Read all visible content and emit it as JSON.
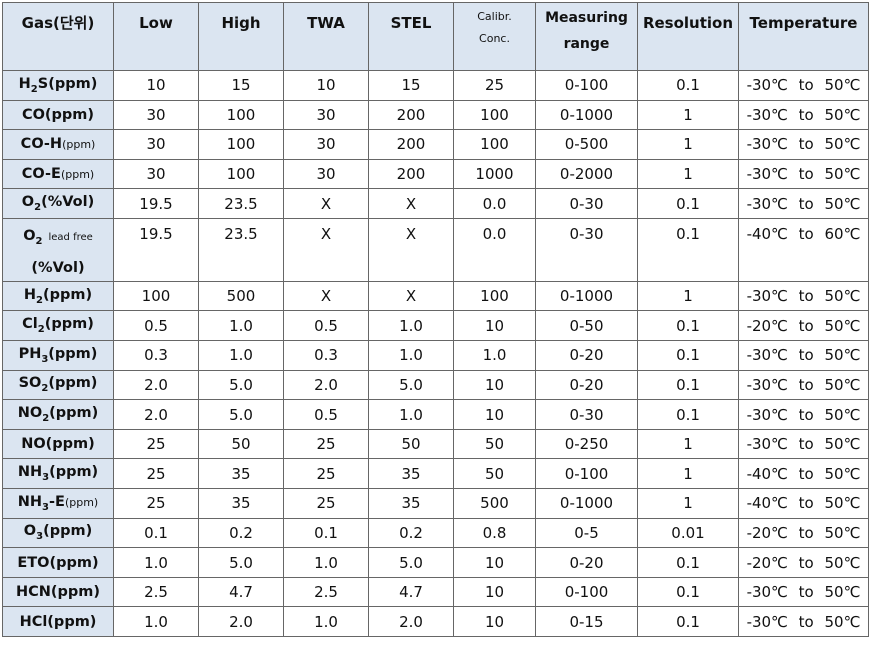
{
  "table": {
    "header": [
      [
        "Gas(단위)"
      ],
      [
        "Low"
      ],
      [
        "High"
      ],
      [
        "TWA"
      ],
      [
        "STEL"
      ],
      [
        "Calibr.",
        "Conc."
      ],
      [
        "Measuring",
        "range"
      ],
      [
        "Resolution"
      ],
      [
        "Temperature"
      ]
    ],
    "rows": [
      {
        "gas": [
          {
            "text": "H"
          },
          {
            "sub": "2"
          },
          {
            "text": "S(ppm)"
          }
        ],
        "cells": [
          "10",
          "15",
          "10",
          "15",
          "25",
          "0-100",
          "0.1",
          "-30℃ to 50℃"
        ]
      },
      {
        "gas": [
          {
            "text": "CO(ppm)"
          }
        ],
        "cells": [
          "30",
          "100",
          "30",
          "200",
          "100",
          "0-1000",
          "1",
          "-30℃ to 50℃"
        ]
      },
      {
        "gas": [
          {
            "text": "CO-H"
          },
          {
            "small": "(ppm)"
          }
        ],
        "cells": [
          "30",
          "100",
          "30",
          "200",
          "100",
          "0-500",
          "1",
          "-30℃ to 50℃"
        ]
      },
      {
        "gas": [
          {
            "text": "CO-E"
          },
          {
            "small": "(ppm)"
          }
        ],
        "cells": [
          "30",
          "100",
          "30",
          "200",
          "1000",
          "0-2000",
          "1",
          "-30℃ to 50℃"
        ]
      },
      {
        "gas": [
          {
            "text": "O"
          },
          {
            "sub": "2"
          },
          {
            "text": "(%Vol)"
          }
        ],
        "cells": [
          "19.5",
          "23.5",
          "X",
          "X",
          "0.0",
          "0-30",
          "0.1",
          "-30℃ to 50℃"
        ]
      },
      {
        "gas": [
          {
            "text": "O"
          },
          {
            "sub": "2"
          },
          {
            "small": "lead free"
          },
          {
            "line": "(%Vol)"
          }
        ],
        "cells": [
          "19.5",
          "23.5",
          "X",
          "X",
          "0.0",
          "0-30",
          "0.1",
          "-40℃ to 60℃"
        ]
      },
      {
        "gas": [
          {
            "text": "H"
          },
          {
            "sub": "2"
          },
          {
            "text": "(ppm)"
          }
        ],
        "cells": [
          "100",
          "500",
          "X",
          "X",
          "100",
          "0-1000",
          "1",
          "-30℃ to 50℃"
        ]
      },
      {
        "gas": [
          {
            "text": "Cl"
          },
          {
            "sub": "2"
          },
          {
            "text": "(ppm)"
          }
        ],
        "cells": [
          "0.5",
          "1.0",
          "0.5",
          "1.0",
          "10",
          "0-50",
          "0.1",
          "-20℃ to 50℃"
        ]
      },
      {
        "gas": [
          {
            "text": "PH"
          },
          {
            "sub": "3"
          },
          {
            "text": "(ppm)"
          }
        ],
        "cells": [
          "0.3",
          "1.0",
          "0.3",
          "1.0",
          "1.0",
          "0-20",
          "0.1",
          "-30℃ to 50℃"
        ]
      },
      {
        "gas": [
          {
            "text": "SO"
          },
          {
            "sub": "2"
          },
          {
            "text": "(ppm)"
          }
        ],
        "cells": [
          "2.0",
          "5.0",
          "2.0",
          "5.0",
          "10",
          "0-20",
          "0.1",
          "-30℃ to 50℃"
        ]
      },
      {
        "gas": [
          {
            "text": "NO"
          },
          {
            "sub": "2"
          },
          {
            "text": "(ppm)"
          }
        ],
        "cells": [
          "2.0",
          "5.0",
          "0.5",
          "1.0",
          "10",
          "0-30",
          "0.1",
          "-30℃ to 50℃"
        ]
      },
      {
        "gas": [
          {
            "text": "NO(ppm)"
          }
        ],
        "cells": [
          "25",
          "50",
          "25",
          "50",
          "50",
          "0-250",
          "1",
          "-30℃ to 50℃"
        ]
      },
      {
        "gas": [
          {
            "text": "NH"
          },
          {
            "sub": "3"
          },
          {
            "text": "(ppm)"
          }
        ],
        "cells": [
          "25",
          "35",
          "25",
          "35",
          "50",
          "0-100",
          "1",
          "-40℃ to 50℃"
        ]
      },
      {
        "gas": [
          {
            "text": "NH"
          },
          {
            "sub": "3"
          },
          {
            "text": "-E"
          },
          {
            "small": "(ppm)"
          }
        ],
        "cells": [
          "25",
          "35",
          "25",
          "35",
          "500",
          "0-1000",
          "1",
          "-40℃ to 50℃"
        ]
      },
      {
        "gas": [
          {
            "text": "O"
          },
          {
            "sub": "3"
          },
          {
            "text": "(ppm)"
          }
        ],
        "cells": [
          "0.1",
          "0.2",
          "0.1",
          "0.2",
          "0.8",
          "0-5",
          "0.01",
          "-20℃ to 50℃"
        ]
      },
      {
        "gas": [
          {
            "text": "ETO(ppm)"
          }
        ],
        "cells": [
          "1.0",
          "5.0",
          "1.0",
          "5.0",
          "10",
          "0-20",
          "0.1",
          "-20℃ to 50℃"
        ]
      },
      {
        "gas": [
          {
            "text": "HCN(ppm)"
          }
        ],
        "cells": [
          "2.5",
          "4.7",
          "2.5",
          "4.7",
          "10",
          "0-100",
          "0.1",
          "-30℃ to 50℃"
        ]
      },
      {
        "gas": [
          {
            "text": "HCl(ppm)"
          }
        ],
        "cells": [
          "1.0",
          "2.0",
          "1.0",
          "2.0",
          "10",
          "0-15",
          "0.1",
          "-30℃ to 50℃"
        ]
      }
    ]
  }
}
